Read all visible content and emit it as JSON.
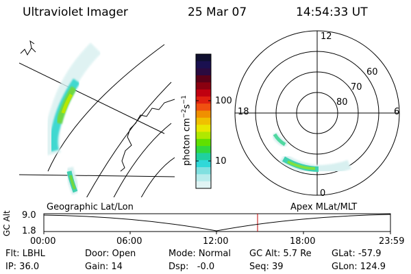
{
  "header": {
    "instrument": "Ultraviolet Imager",
    "date": "25 Mar 07",
    "time": "14:54:33 UT"
  },
  "colorbar": {
    "label_main": "photon cm",
    "label_exp1": "−2",
    "label_mid": "s",
    "label_exp2": "−1",
    "ticks": [
      "100",
      "10"
    ],
    "colors": [
      "#101030",
      "#1a1050",
      "#2a0a40",
      "#5a0018",
      "#8a0010",
      "#c00010",
      "#e02010",
      "#f05010",
      "#f09000",
      "#f0c000",
      "#e8e800",
      "#b0e800",
      "#60e000",
      "#30d840",
      "#20d0a0",
      "#30d8d8",
      "#80e0e0",
      "#b8ecec",
      "#e0f4f4"
    ]
  },
  "polar": {
    "mlt_labels": [
      "12",
      "18",
      "6",
      "0"
    ],
    "lat_labels": [
      "60",
      "70",
      "80"
    ]
  },
  "bottom": {
    "left_title": "Geographic Lat/Lon",
    "right_title": "Apex MLat/MLT",
    "axis_label": "GC Alt",
    "y_ticks": [
      "9.0",
      "1.8"
    ],
    "x_ticks": [
      "00:00",
      "06:00",
      "12:00",
      "18:00",
      "23:59"
    ]
  },
  "info": {
    "row1": [
      "Flt: LBHL",
      "Door: Open",
      "Mode: Normal",
      "GC Alt: 5.7 Re",
      "GLat: -57.9"
    ],
    "row2": [
      "IP: 36.0",
      "Gain: 14",
      "Dsp:   -0.0",
      "Seq: 39",
      "GLon: 124.9"
    ]
  }
}
